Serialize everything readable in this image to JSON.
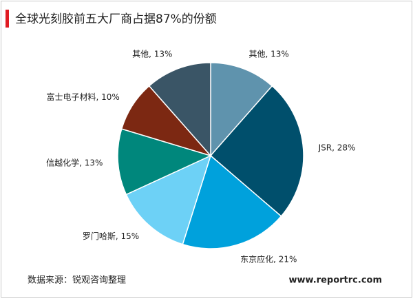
{
  "chart_data": {
    "type": "pie",
    "title": "全球光刻胶前五大厂商占据87%的份额",
    "values": [
      13,
      28,
      21,
      15,
      13,
      10,
      13
    ],
    "value_labels": [
      "其他, 13%",
      "JSR, 28%",
      "东京应化, 21%",
      "罗门哈斯, 15%",
      "信越化学, 13%",
      "富士电子材料, 10%",
      "其他, 13%"
    ],
    "colors": [
      "#5f93ad",
      "#004f6c",
      "#00a1dc",
      "#6dd1f6",
      "#00877c",
      "#7c2812",
      "#3a5566"
    ],
    "source": "数据来源：锐观咨询整理",
    "website": "www.reportrc.com"
  }
}
